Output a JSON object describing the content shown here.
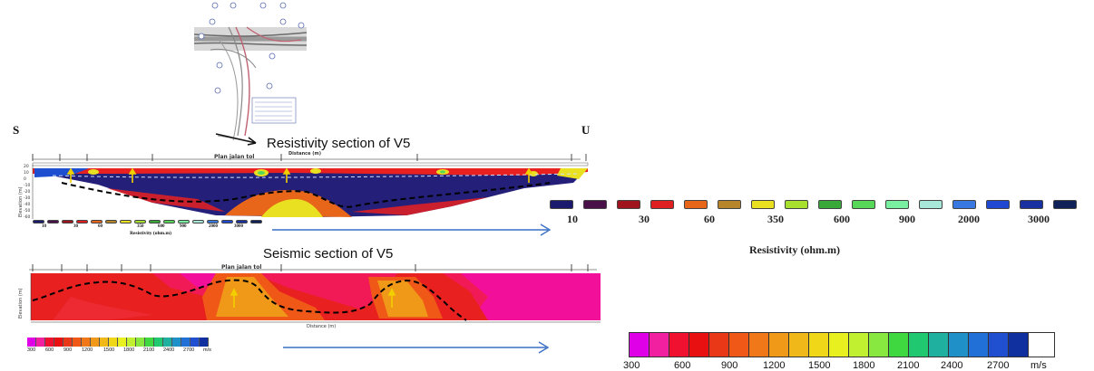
{
  "corner_labels": {
    "left": "S",
    "right": "U"
  },
  "resistivity_section": {
    "title": "Resistivity section of V5",
    "distance_label": "Distance (m)",
    "plan_label": "Plan jalan tol",
    "elevation_label": "Elevation (m)",
    "elevation_ticks": [
      "20",
      "10",
      "0",
      "-10",
      "-20",
      "-30",
      "-40",
      "-50",
      "-60"
    ],
    "small_legend_values": [
      "10",
      "30",
      "60",
      "350",
      "600",
      "900",
      "2000",
      "3000"
    ],
    "small_legend_title": "Resistivity (ohm.m)"
  },
  "seismic_section": {
    "title": "Seismic section of V5",
    "plan_label": "Plan jalan tol",
    "distance_label": "Distance (m)",
    "elevation_label": "Elevation (m)",
    "small_legend_values": [
      "300",
      "600",
      "900",
      "1200",
      "1500",
      "1800",
      "2100",
      "2400",
      "2700"
    ],
    "small_legend_unit": "m/s"
  },
  "resistivity_legend": {
    "values": [
      "10",
      "30",
      "60",
      "350",
      "600",
      "900",
      "2000",
      "3000"
    ],
    "title": "Resistivity (ohm.m)",
    "colors": [
      "#1a1a6e",
      "#4a1048",
      "#a0141e",
      "#e02020",
      "#e8661a",
      "#b8862a",
      "#e8e020",
      "#a8e030",
      "#38a838",
      "#58d858",
      "#78f0a0",
      "#a8e8d8",
      "#3878e0",
      "#2048d0",
      "#1830a0",
      "#102058"
    ]
  },
  "velocity_legend": {
    "values": [
      "300",
      "600",
      "900",
      "1200",
      "1500",
      "1800",
      "2100",
      "2400",
      "2700"
    ],
    "unit": "m/s",
    "colors": [
      "#e000e8",
      "#f020a0",
      "#f01030",
      "#e81010",
      "#e83818",
      "#f05818",
      "#f07818",
      "#f09818",
      "#f0b818",
      "#f0d818",
      "#e8f020",
      "#c0f030",
      "#88e840",
      "#40d840",
      "#20c870",
      "#20b0a0",
      "#2090c8",
      "#2070d8",
      "#2050d0",
      "#1030a0"
    ]
  },
  "colors": {
    "arrow": "#3a6fc4",
    "deep_resistivity": "#24207a",
    "shallow_resistivity": "#e82020",
    "seismic_base": "#f2109a",
    "seismic_high": "#f02020"
  }
}
